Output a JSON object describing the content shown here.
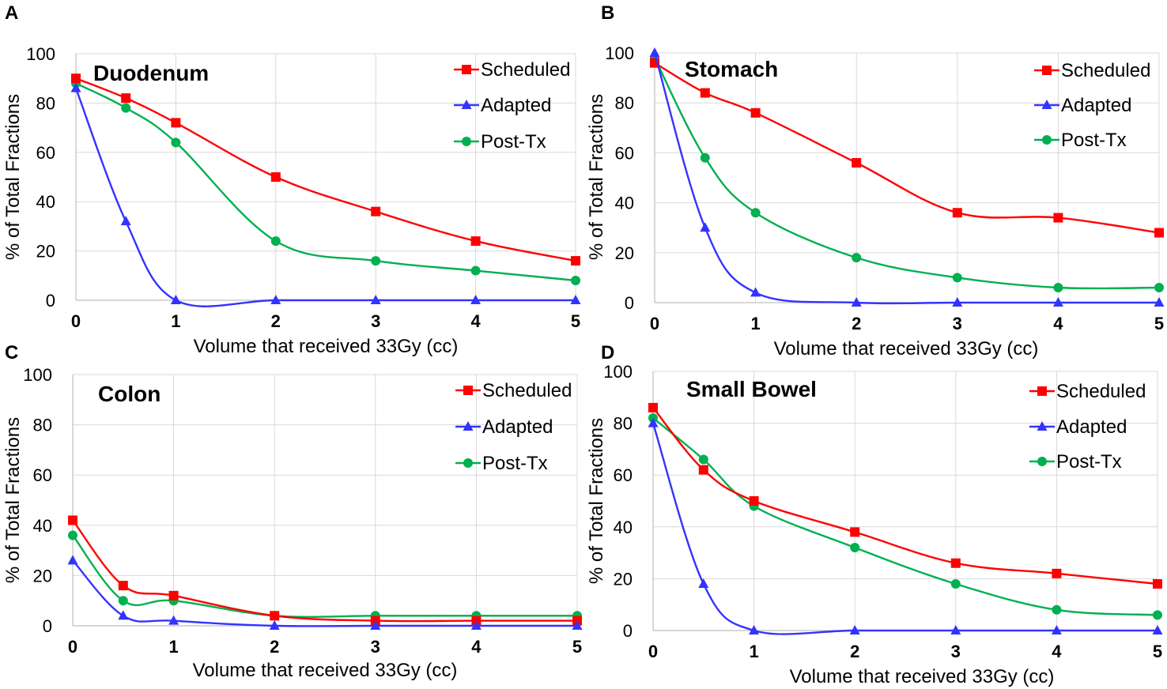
{
  "chart_data": [
    {
      "panel": "A",
      "type": "line",
      "title": "Duodenum",
      "x": [
        0,
        0.5,
        1,
        2,
        3,
        4,
        5
      ],
      "xticks": [
        "0",
        "1",
        "2",
        "3",
        "4",
        "5"
      ],
      "yticks": [
        "0",
        "20",
        "40",
        "60",
        "80",
        "100"
      ],
      "xlim": [
        0,
        5
      ],
      "ylim": [
        0,
        100
      ],
      "xlabel": "Volume that received 33Gy (cc)",
      "ylabel": "% of Total Fractions",
      "grid": true,
      "legend_position": "top-right",
      "series": [
        {
          "name": "Scheduled",
          "values": [
            90,
            82,
            72,
            50,
            36,
            24,
            16
          ]
        },
        {
          "name": "Adapted",
          "values": [
            86,
            32,
            0,
            0,
            0,
            0,
            0
          ]
        },
        {
          "name": "Post-Tx",
          "values": [
            88,
            78,
            64,
            24,
            16,
            12,
            8
          ]
        }
      ]
    },
    {
      "panel": "B",
      "type": "line",
      "title": "Stomach",
      "x": [
        0,
        0.5,
        1,
        2,
        3,
        4,
        5
      ],
      "xticks": [
        "0",
        "1",
        "2",
        "3",
        "4",
        "5"
      ],
      "yticks": [
        "0",
        "20",
        "40",
        "60",
        "80",
        "100"
      ],
      "xlim": [
        0,
        5
      ],
      "ylim": [
        0,
        100
      ],
      "xlabel": "Volume that received 33Gy (cc)",
      "ylabel": "% of Total Fractions",
      "grid": true,
      "legend_position": "top-right",
      "series": [
        {
          "name": "Scheduled",
          "values": [
            96,
            84,
            76,
            56,
            36,
            34,
            28
          ]
        },
        {
          "name": "Adapted",
          "values": [
            100,
            30,
            4,
            0,
            0,
            0,
            0
          ]
        },
        {
          "name": "Post-Tx",
          "values": [
            98,
            58,
            36,
            18,
            10,
            6,
            6
          ]
        }
      ]
    },
    {
      "panel": "C",
      "type": "line",
      "title": "Colon",
      "x": [
        0,
        0.5,
        1,
        2,
        3,
        4,
        5
      ],
      "xticks": [
        "0",
        "1",
        "2",
        "3",
        "4",
        "5"
      ],
      "yticks": [
        "0",
        "20",
        "40",
        "60",
        "80",
        "100"
      ],
      "xlim": [
        0,
        5
      ],
      "ylim": [
        0,
        100
      ],
      "xlabel": "Volume that received 33Gy (cc)",
      "ylabel": "% of Total Fractions",
      "grid": true,
      "legend_position": "top-right",
      "series": [
        {
          "name": "Scheduled",
          "values": [
            42,
            16,
            12,
            4,
            2,
            2,
            2
          ]
        },
        {
          "name": "Adapted",
          "values": [
            26,
            4,
            2,
            0,
            0,
            0,
            0
          ]
        },
        {
          "name": "Post-Tx",
          "values": [
            36,
            10,
            10,
            4,
            4,
            4,
            4
          ]
        }
      ]
    },
    {
      "panel": "D",
      "type": "line",
      "title": "Small Bowel",
      "x": [
        0,
        0.5,
        1,
        2,
        3,
        4,
        5
      ],
      "xticks": [
        "0",
        "1",
        "2",
        "3",
        "4",
        "5"
      ],
      "yticks": [
        "0",
        "20",
        "40",
        "60",
        "80",
        "100"
      ],
      "xlim": [
        0,
        5
      ],
      "ylim": [
        0,
        100
      ],
      "xlabel": "Volume that received 33Gy (cc)",
      "ylabel": "% of Total Fractions",
      "grid": true,
      "legend_position": "top-right",
      "series": [
        {
          "name": "Scheduled",
          "values": [
            86,
            62,
            50,
            38,
            26,
            22,
            18
          ]
        },
        {
          "name": "Adapted",
          "values": [
            80,
            18,
            0,
            0,
            0,
            0,
            0
          ]
        },
        {
          "name": "Post-Tx",
          "values": [
            82,
            66,
            48,
            32,
            18,
            8,
            6
          ]
        }
      ]
    }
  ],
  "series_colors": {
    "Scheduled": "#ff0000",
    "Adapted": "#3333ff",
    "Post-Tx": "#00b050"
  },
  "series_markers": {
    "Scheduled": "square",
    "Adapted": "triangle",
    "Post-Tx": "circle"
  }
}
